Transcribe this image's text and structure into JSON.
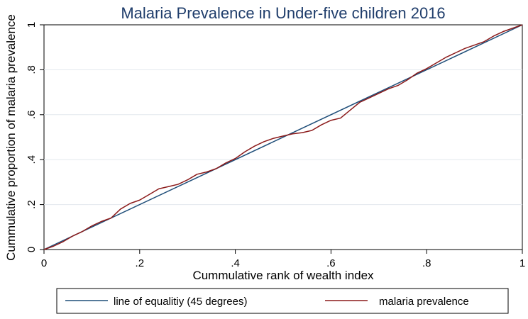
{
  "chart_data": {
    "type": "line",
    "title": "Malaria Prevalence in Under-five children 2016",
    "xlabel": "Cummulative rank of wealth index",
    "ylabel": "Cummulative proportion of malaria prevalence",
    "xlim": [
      0,
      1
    ],
    "ylim": [
      0,
      1
    ],
    "x_ticks": [
      0,
      0.2,
      0.4,
      0.6,
      0.8,
      1
    ],
    "x_tick_labels": [
      "0",
      ".2",
      ".4",
      ".6",
      ".8",
      "1"
    ],
    "y_ticks": [
      0,
      0.2,
      0.4,
      0.6,
      0.8,
      1
    ],
    "y_tick_labels": [
      "0",
      ".2",
      ".4",
      ".6",
      ".8",
      "1"
    ],
    "grid": "horizontal",
    "legend_position": "bottom",
    "series": [
      {
        "name": "line of equalitiy (45 degrees)",
        "color": "#1f4e79",
        "x": [
          0,
          1
        ],
        "y": [
          0,
          1
        ]
      },
      {
        "name": "malaria prevalence",
        "color": "#8b1a1a",
        "x": [
          0,
          0.02,
          0.04,
          0.06,
          0.08,
          0.1,
          0.12,
          0.14,
          0.15,
          0.16,
          0.18,
          0.2,
          0.22,
          0.24,
          0.26,
          0.28,
          0.3,
          0.32,
          0.34,
          0.36,
          0.38,
          0.4,
          0.42,
          0.44,
          0.46,
          0.48,
          0.5,
          0.52,
          0.54,
          0.56,
          0.58,
          0.6,
          0.62,
          0.64,
          0.66,
          0.68,
          0.7,
          0.72,
          0.74,
          0.76,
          0.78,
          0.8,
          0.82,
          0.84,
          0.86,
          0.88,
          0.9,
          0.92,
          0.94,
          0.96,
          0.98,
          1.0
        ],
        "y": [
          0,
          0.015,
          0.035,
          0.06,
          0.08,
          0.105,
          0.125,
          0.14,
          0.16,
          0.18,
          0.205,
          0.22,
          0.245,
          0.27,
          0.28,
          0.29,
          0.31,
          0.335,
          0.345,
          0.36,
          0.385,
          0.405,
          0.435,
          0.46,
          0.48,
          0.495,
          0.505,
          0.515,
          0.52,
          0.53,
          0.555,
          0.575,
          0.585,
          0.62,
          0.655,
          0.675,
          0.695,
          0.715,
          0.73,
          0.755,
          0.785,
          0.805,
          0.83,
          0.855,
          0.875,
          0.895,
          0.91,
          0.925,
          0.95,
          0.97,
          0.985,
          1.0
        ]
      }
    ]
  }
}
